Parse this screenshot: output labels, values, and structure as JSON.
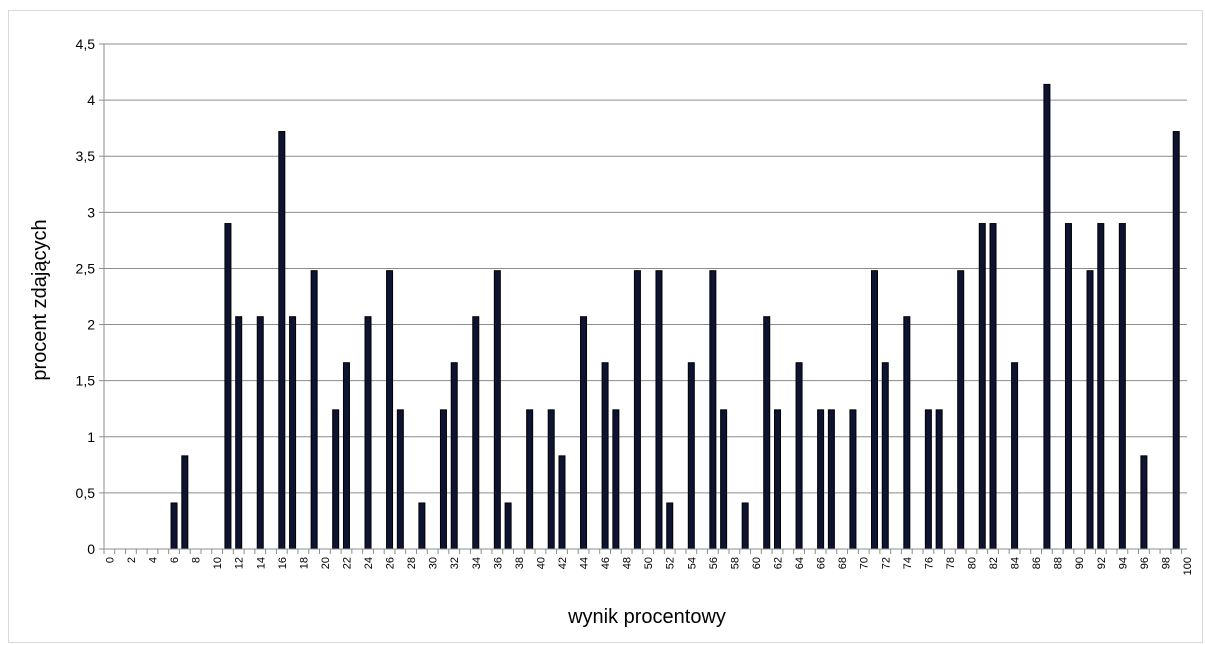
{
  "chart_data": {
    "type": "bar",
    "xlabel": "wynik procentowy",
    "ylabel": "procent zdających",
    "ylim": [
      0,
      4.5
    ],
    "yticks": [
      "0",
      "0,5",
      "1",
      "1,5",
      "2",
      "2,5",
      "3",
      "3,5",
      "4",
      "4,5"
    ],
    "grid": true,
    "bar_color": "#0d1330",
    "categories": [
      0,
      1,
      2,
      3,
      4,
      5,
      6,
      7,
      8,
      9,
      10,
      11,
      12,
      13,
      14,
      15,
      16,
      17,
      18,
      19,
      20,
      21,
      22,
      23,
      24,
      25,
      26,
      27,
      28,
      29,
      30,
      31,
      32,
      33,
      34,
      35,
      36,
      37,
      38,
      39,
      40,
      41,
      42,
      43,
      44,
      45,
      46,
      47,
      48,
      49,
      50,
      51,
      52,
      53,
      54,
      55,
      56,
      57,
      58,
      59,
      60,
      61,
      62,
      63,
      64,
      65,
      66,
      67,
      68,
      69,
      70,
      71,
      72,
      73,
      74,
      75,
      76,
      77,
      78,
      79,
      80,
      81,
      82,
      83,
      84,
      85,
      86,
      87,
      88,
      89,
      90,
      91,
      92,
      93,
      94,
      95,
      96,
      97,
      98,
      99,
      100
    ],
    "values": [
      0,
      0,
      0,
      0,
      0,
      0,
      0.41,
      0.83,
      0,
      0,
      0,
      2.9,
      2.07,
      0,
      2.07,
      0,
      3.72,
      2.07,
      0,
      2.48,
      0,
      1.24,
      1.66,
      0,
      2.07,
      0,
      2.48,
      1.24,
      0,
      0.41,
      0,
      1.24,
      1.66,
      0,
      2.07,
      0,
      2.48,
      0.41,
      0,
      1.24,
      0,
      1.24,
      0.83,
      0,
      2.07,
      0,
      1.66,
      1.24,
      0,
      2.48,
      0,
      2.48,
      0.41,
      0,
      1.66,
      0,
      2.48,
      1.24,
      0,
      0.41,
      0,
      2.07,
      1.24,
      0,
      1.66,
      0,
      1.24,
      1.24,
      0,
      1.24,
      0,
      2.48,
      1.66,
      0,
      2.07,
      0,
      1.24,
      1.24,
      0,
      2.48,
      0,
      2.9,
      2.9,
      0,
      1.66,
      0,
      0,
      4.14,
      0,
      2.9,
      0,
      2.48,
      2.9,
      0,
      2.9,
      0,
      0.83,
      0,
      0,
      3.72,
      0
    ]
  }
}
